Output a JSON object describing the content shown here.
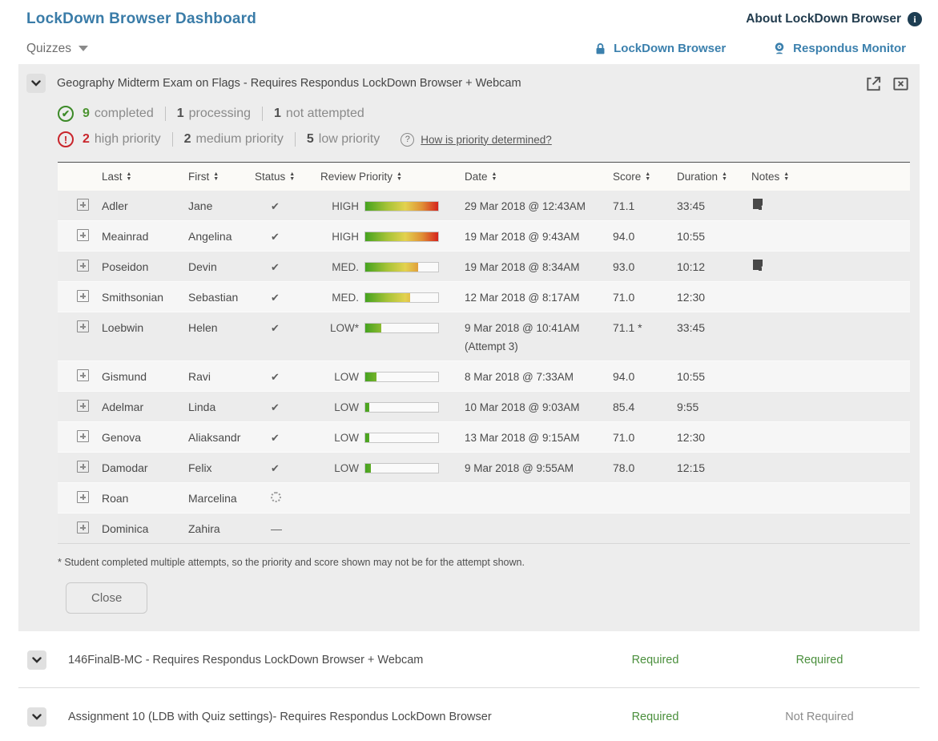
{
  "header": {
    "title": "LockDown Browser Dashboard",
    "about_label": "About LockDown Browser",
    "quizzes_label": "Quizzes",
    "ldb_col_label": "LockDown Browser",
    "monitor_col_label": "Respondus Monitor"
  },
  "colors": {
    "title_blue": "#3a7ca8",
    "link_blue": "#3b80ad",
    "completed_green": "#4c9431",
    "high_priority_red": "#c9252b",
    "required_green": "#4a8f3c",
    "not_required_gray": "#8b8b8b",
    "panel_background": "#ededed"
  },
  "panel": {
    "title": "Geography Midterm Exam on Flags - Requires Respondus LockDown Browser + Webcam",
    "stats": {
      "completed_count": "9",
      "completed_label": "completed",
      "processing_count": "1",
      "processing_label": "processing",
      "not_attempted_count": "1",
      "not_attempted_label": "not attempted",
      "high_count": "2",
      "high_label": "high priority",
      "medium_count": "2",
      "medium_label": "medium priority",
      "low_count": "5",
      "low_label": "low priority",
      "priority_link": "How is priority determined?"
    },
    "table": {
      "columns": [
        "Last",
        "First",
        "Status",
        "Review Priority",
        "Date",
        "Score",
        "Duration",
        "Notes"
      ],
      "status_glyphs": {
        "check": "✔",
        "none": "—"
      },
      "rows": [
        {
          "last": "Adler",
          "first": "Jane",
          "status": "check",
          "priority_label": "HIGH",
          "priority_pct": 100,
          "date": "29 Mar 2018 @ 12:43AM",
          "attempt": "",
          "score": "71.1",
          "duration": "33:45",
          "note": true
        },
        {
          "last": "Meainrad",
          "first": "Angelina",
          "status": "check",
          "priority_label": "HIGH",
          "priority_pct": 100,
          "date": "19 Mar 2018 @ 9:43AM",
          "attempt": "",
          "score": "94.0",
          "duration": "10:55",
          "note": false
        },
        {
          "last": "Poseidon",
          "first": "Devin",
          "status": "check",
          "priority_label": "MED.",
          "priority_pct": 72,
          "date": "19 Mar 2018 @ 8:34AM",
          "attempt": "",
          "score": "93.0",
          "duration": "10:12",
          "note": true
        },
        {
          "last": "Smithsonian",
          "first": "Sebastian",
          "status": "check",
          "priority_label": "MED.",
          "priority_pct": 62,
          "date": "12 Mar 2018 @ 8:17AM",
          "attempt": "",
          "score": "71.0",
          "duration": "12:30",
          "note": false
        },
        {
          "last": "Loebwin",
          "first": "Helen",
          "status": "check",
          "priority_label": "LOW*",
          "priority_pct": 22,
          "date": "9 Mar 2018 @ 10:41AM",
          "attempt": "(Attempt 3)",
          "score": "71.1 *",
          "duration": "33:45",
          "note": false
        },
        {
          "last": "Gismund",
          "first": "Ravi",
          "status": "check",
          "priority_label": "LOW",
          "priority_pct": 15,
          "date": "8 Mar 2018 @ 7:33AM",
          "attempt": "",
          "score": "94.0",
          "duration": "10:55",
          "note": false
        },
        {
          "last": "Adelmar",
          "first": "Linda",
          "status": "check",
          "priority_label": "LOW",
          "priority_pct": 6,
          "date": "10 Mar 2018 @ 9:03AM",
          "attempt": "",
          "score": "85.4",
          "duration": "9:55",
          "note": false
        },
        {
          "last": "Genova",
          "first": "Aliaksandr",
          "status": "check",
          "priority_label": "LOW",
          "priority_pct": 6,
          "date": "13 Mar 2018 @ 9:15AM",
          "attempt": "",
          "score": "71.0",
          "duration": "12:30",
          "note": false
        },
        {
          "last": "Damodar",
          "first": "Felix",
          "status": "check",
          "priority_label": "LOW",
          "priority_pct": 8,
          "date": "9 Mar 2018 @ 9:55AM",
          "attempt": "",
          "score": "78.0",
          "duration": "12:15",
          "note": false
        },
        {
          "last": "Roan",
          "first": "Marcelina",
          "status": "processing",
          "priority_label": "",
          "priority_pct": null,
          "date": "",
          "attempt": "",
          "score": "",
          "duration": "",
          "note": false
        },
        {
          "last": "Dominica",
          "first": "Zahira",
          "status": "none",
          "priority_label": "",
          "priority_pct": null,
          "date": "",
          "attempt": "",
          "score": "",
          "duration": "",
          "note": false
        }
      ]
    },
    "footnote": "* Student completed multiple attempts, so the priority and score shown may not be for the attempt shown.",
    "close_label": "Close"
  },
  "quizzes": [
    {
      "title": "146FinalB-MC - Requires Respondus LockDown Browser + Webcam",
      "ldb": "Required",
      "ldb_style": "green",
      "monitor": "Required",
      "monitor_style": "green"
    },
    {
      "title": "Assignment 10 (LDB with Quiz settings)- Requires Respondus LockDown Browser",
      "ldb": "Required",
      "ldb_style": "green",
      "monitor": "Not Required",
      "monitor_style": "gray"
    }
  ]
}
